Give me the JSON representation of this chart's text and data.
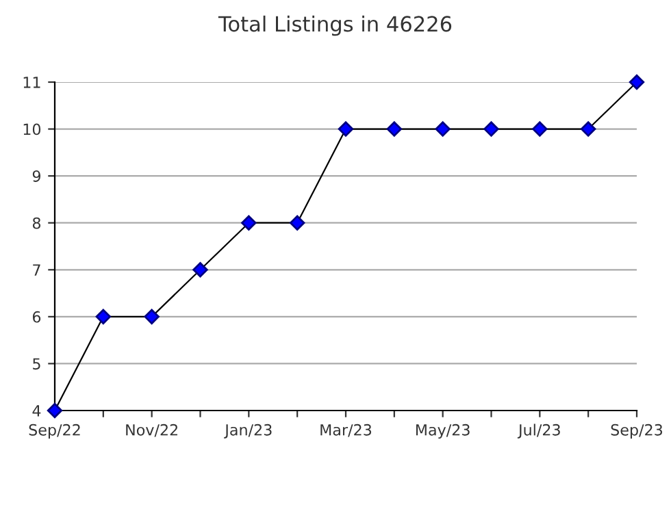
{
  "chart_data": {
    "type": "line",
    "title": "Total Listings in 46226",
    "categories": [
      "Sep/22",
      null,
      "Nov/22",
      null,
      "Jan/23",
      null,
      "Mar/23",
      null,
      "May/23",
      null,
      "Jul/23",
      null,
      "Sep/23"
    ],
    "series": [
      {
        "color": "#0000ff",
        "values": [
          4,
          6,
          6,
          7,
          8,
          8,
          10,
          10,
          10,
          10,
          10,
          10,
          11
        ]
      }
    ],
    "ylim": [
      4,
      11
    ],
    "yticks": [
      4,
      5,
      6,
      7,
      8,
      9,
      10,
      11
    ],
    "grid": "y",
    "marker": "diamond",
    "line_style": "solid",
    "legend": false
  }
}
